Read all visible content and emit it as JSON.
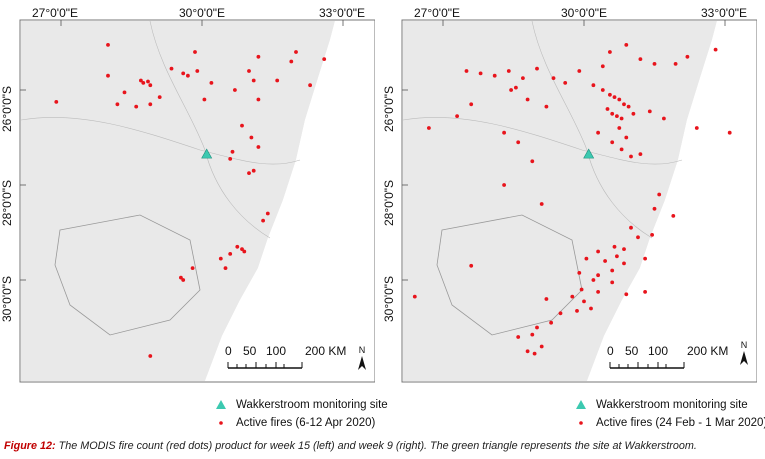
{
  "maps": [
    {
      "x_ticks": [
        "27°0'0\"E",
        "30°0'0\"E",
        "33°0'0\"E"
      ],
      "y_ticks": [
        "26°0'0\"S",
        "28°0'0\"S",
        "30°0'0\"S"
      ],
      "scale_labels": [
        "0",
        "50",
        "100",
        "200 KM"
      ],
      "north_label": "N",
      "site_label": "Wakkerstroom monitoring site",
      "fires_label": "Active fires (6-12 Apr 2020)",
      "site_color": "#3cc9b0",
      "fire_color": "#e8141c",
      "site_location": [
        30.1,
        27.35
      ],
      "fire_points": [
        [
          28.0,
          25.05
        ],
        [
          28.7,
          25.8
        ],
        [
          28.85,
          25.82
        ],
        [
          28.75,
          25.85
        ],
        [
          28.9,
          25.9
        ],
        [
          29.35,
          25.55
        ],
        [
          29.6,
          25.65
        ],
        [
          29.7,
          25.7
        ],
        [
          29.9,
          25.6
        ],
        [
          29.85,
          25.2
        ],
        [
          31.2,
          25.3
        ],
        [
          32.0,
          25.2
        ],
        [
          32.6,
          25.35
        ],
        [
          31.9,
          25.4
        ],
        [
          31.6,
          25.8
        ],
        [
          32.3,
          25.9
        ],
        [
          30.2,
          25.85
        ],
        [
          31.0,
          25.6
        ],
        [
          31.1,
          25.8
        ],
        [
          30.7,
          26.0
        ],
        [
          31.2,
          26.2
        ],
        [
          30.05,
          26.2
        ],
        [
          30.85,
          26.75
        ],
        [
          31.05,
          27.0
        ],
        [
          31.2,
          27.2
        ],
        [
          30.65,
          27.3
        ],
        [
          30.6,
          27.45
        ],
        [
          31.1,
          27.7
        ],
        [
          31.0,
          27.75
        ],
        [
          31.4,
          28.6
        ],
        [
          31.3,
          28.75
        ],
        [
          30.75,
          29.3
        ],
        [
          30.85,
          29.35
        ],
        [
          30.9,
          29.4
        ],
        [
          30.6,
          29.45
        ],
        [
          30.4,
          29.55
        ],
        [
          30.5,
          29.75
        ],
        [
          29.8,
          29.75
        ],
        [
          29.55,
          29.95
        ],
        [
          29.6,
          30.0
        ],
        [
          28.35,
          26.05
        ],
        [
          28.9,
          26.3
        ],
        [
          28.2,
          26.3
        ],
        [
          28.6,
          26.35
        ],
        [
          29.1,
          26.15
        ],
        [
          26.9,
          26.25
        ],
        [
          28.9,
          31.6
        ],
        [
          28.0,
          25.7
        ]
      ]
    },
    {
      "x_ticks": [
        "27°0'0\"E",
        "30°0'0\"E",
        "33°0'0\"E"
      ],
      "y_ticks": [
        "26°0'0\"S",
        "28°0'0\"S",
        "30°0'0\"S"
      ],
      "scale_labels": [
        "0",
        "50",
        "100",
        "200 KM"
      ],
      "north_label": "N",
      "site_label": "Wakkerstroom monitoring site",
      "fires_label": "Active fires (24 Feb - 1 Mar 2020)",
      "site_color": "#3cc9b0",
      "fire_color": "#e8141c",
      "site_location": [
        30.1,
        27.35
      ],
      "fire_points": [
        [
          27.5,
          25.6
        ],
        [
          27.8,
          25.65
        ],
        [
          28.1,
          25.7
        ],
        [
          28.4,
          25.6
        ],
        [
          28.7,
          25.75
        ],
        [
          29.0,
          25.55
        ],
        [
          29.35,
          25.75
        ],
        [
          29.6,
          25.85
        ],
        [
          29.9,
          25.6
        ],
        [
          30.55,
          25.2
        ],
        [
          30.9,
          25.05
        ],
        [
          31.2,
          25.35
        ],
        [
          31.5,
          25.45
        ],
        [
          31.95,
          25.45
        ],
        [
          32.2,
          25.3
        ],
        [
          32.8,
          25.15
        ],
        [
          30.2,
          25.9
        ],
        [
          30.4,
          26.0
        ],
        [
          30.55,
          26.1
        ],
        [
          30.65,
          26.15
        ],
        [
          30.75,
          26.2
        ],
        [
          30.85,
          26.3
        ],
        [
          30.95,
          26.35
        ],
        [
          30.5,
          26.4
        ],
        [
          30.6,
          26.5
        ],
        [
          30.7,
          26.55
        ],
        [
          30.8,
          26.6
        ],
        [
          31.05,
          26.5
        ],
        [
          31.4,
          26.45
        ],
        [
          31.7,
          26.6
        ],
        [
          30.75,
          26.8
        ],
        [
          30.9,
          27.0
        ],
        [
          30.8,
          27.25
        ],
        [
          31.0,
          27.4
        ],
        [
          31.2,
          27.35
        ],
        [
          30.6,
          27.1
        ],
        [
          30.3,
          26.9
        ],
        [
          28.45,
          26.0
        ],
        [
          28.55,
          25.95
        ],
        [
          28.8,
          26.2
        ],
        [
          29.2,
          26.35
        ],
        [
          27.6,
          26.3
        ],
        [
          27.3,
          26.55
        ],
        [
          26.7,
          26.8
        ],
        [
          28.3,
          26.9
        ],
        [
          28.6,
          27.1
        ],
        [
          28.9,
          27.5
        ],
        [
          32.4,
          26.8
        ],
        [
          31.5,
          28.5
        ],
        [
          31.9,
          28.65
        ],
        [
          31.0,
          28.9
        ],
        [
          31.15,
          29.1
        ],
        [
          31.45,
          29.05
        ],
        [
          30.65,
          29.3
        ],
        [
          30.85,
          29.35
        ],
        [
          30.3,
          29.4
        ],
        [
          30.7,
          29.5
        ],
        [
          30.45,
          29.6
        ],
        [
          30.05,
          29.55
        ],
        [
          30.85,
          29.65
        ],
        [
          31.3,
          29.55
        ],
        [
          30.6,
          29.8
        ],
        [
          30.3,
          29.9
        ],
        [
          29.9,
          29.85
        ],
        [
          30.2,
          30.0
        ],
        [
          30.6,
          30.05
        ],
        [
          29.95,
          30.2
        ],
        [
          30.3,
          30.25
        ],
        [
          29.75,
          30.35
        ],
        [
          30.0,
          30.45
        ],
        [
          30.15,
          30.6
        ],
        [
          29.85,
          30.65
        ],
        [
          30.9,
          30.3
        ],
        [
          31.3,
          30.25
        ],
        [
          29.5,
          30.7
        ],
        [
          29.3,
          30.9
        ],
        [
          29.0,
          31.0
        ],
        [
          29.2,
          30.4
        ],
        [
          27.6,
          29.7
        ],
        [
          28.6,
          31.2
        ],
        [
          28.9,
          31.15
        ],
        [
          29.1,
          31.4
        ],
        [
          28.8,
          31.5
        ],
        [
          28.95,
          31.55
        ],
        [
          26.4,
          30.35
        ],
        [
          28.3,
          28.0
        ],
        [
          29.1,
          28.4
        ],
        [
          31.6,
          28.2
        ],
        [
          33.1,
          26.9
        ],
        [
          30.4,
          25.5
        ]
      ]
    }
  ],
  "caption_label": "Figure 12:",
  "caption_text": " The MODIS fire count (red dots) product for week 15 (left) and week 9 (right). The green triangle represents the site at Wakkerstroom."
}
